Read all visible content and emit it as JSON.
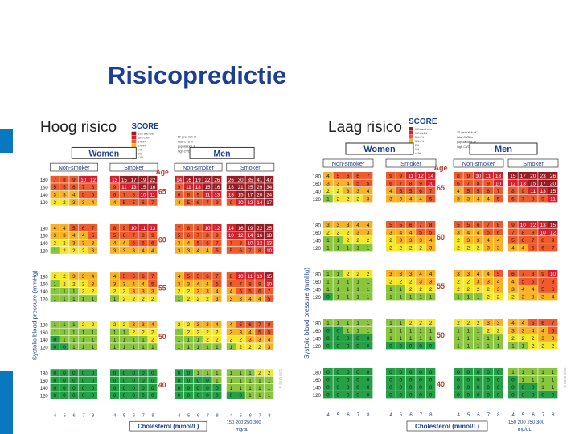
{
  "title": "Risicopredictie",
  "left": {
    "label": "Hoog risico",
    "ages": [
      "65",
      "60",
      "55",
      "50",
      "40"
    ],
    "grid": [
      [
        "7 8 9 10 12",
        "13 15 17 19 22",
        "14 16 19 22 26",
        "26 30 35 41 47",
        "5 5 6 7 8",
        "9 11 13 15 16",
        "9 11 13 15 16",
        "18 21 25 29 34",
        "3 3 4 5 6",
        "6 7 8 10 11",
        "6 8 9 11 13",
        "13 15 17 20 24",
        "2 2 3 3 4",
        "4 5 5 6 7",
        "4 5 6 7 9",
        "9 10 12 14 17"
      ],
      [
        "4 4 5 6 7",
        "8 9 10 11 13",
        "7 8 9 10 12",
        "14 16 19 22 25",
        "3 3 4 4 5",
        "5 6 7 8 9",
        "5 6 7 8 9",
        "10 12 14 16 18",
        "2 2 3 3 3",
        "4 4 5 5 6",
        "3 4 5 6 7",
        "7 8 10 12 13",
        "1 2 2 2 3",
        "3 3 3 4 4",
        "3 3 4 4 5",
        "5 6 7 8 10"
      ],
      [
        "2 2 3 3 4",
        "4 5 5 6 7",
        "4 5 5 6 7",
        "8 10 11 13 15",
        "1 2 2 2 3",
        "3 3 4 4 5",
        "3 3 4 4 5",
        "6 7 8 9 10",
        "1 1 1 2 2",
        "2 2 3 3 3",
        "2 2 3 3 4",
        "4 5 5 6 7",
        "1 1 1 1 1",
        "1 2 2 2 2",
        "1 2 2 2 3",
        "3 3 4 4 5"
      ],
      [
        "1 1 1 2 2",
        "2 2 3 3 4",
        "2 2 3 3 4",
        "4 5 6 7 8",
        "1 1 1 1 1",
        "1 1 2 2 2",
        "1 2 2 2 2",
        "3 3 4 5 5",
        "0 1 1 1 1",
        "1 1 1 1 2",
        "1 1 1 2 2",
        "2 2 3 3 4",
        "0 0 1 1 1",
        "1 1 1 1 1",
        "1 1 1 1 1",
        "1 2 2 2 3"
      ],
      [
        "0 0 0 0 0",
        "0 0 0 0 0",
        "0 0 1 1 1",
        "1 1 1 2 2",
        "0 0 0 0 0",
        "0 0 0 0 0",
        "0 0 0 0 1",
        "1 1 1 1 1",
        "0 0 0 0 0",
        "0 0 0 0 0",
        "0 0 0 0 0",
        "1 1 1 1 1",
        "0 0 0 0 0",
        "0 0 0 0 0",
        "0 0 0 0 0",
        "0 0 1 1 1"
      ]
    ]
  },
  "right": {
    "label": "Laag risico",
    "ages": [
      "65",
      "60",
      "55",
      "50",
      "40"
    ],
    "grid": [
      [
        "4 5 6 6 7",
        "9 9 11 12 14",
        "8 9 10 11 13",
        "15 17 20 23 26",
        "3 3 4 5 5",
        "6 7 8 9 10",
        "6 7 8 9 10",
        "12 13 15 17 20",
        "2 2 3 3 4",
        "4 5 5 6 7",
        "4 5 5 6 7",
        "8 9 11 13 15",
        "1 2 2 2 3",
        "3 3 4 4 5",
        "3 3 4 4 5",
        "6 7 8 9 11"
      ],
      [
        "3 3 3 4 4",
        "5 5 6 7 8",
        "5 5 6 7 8",
        "9 10 12 13 15",
        "2 2 2 3 3",
        "3 4 4 5 5",
        "3 4 4 5 6",
        "7 8 9 10 12",
        "1 1 2 2 2",
        "2 3 3 3 4",
        "2 3 3 4 4",
        "5 6 7 8 9",
        "1 1 1 1 1",
        "2 2 2 2 3",
        "2 2 2 3 3",
        "4 4 5 6 7"
      ],
      [
        "1 1 2 2 2",
        "3 3 3 4 4",
        "3 3 4 4 5",
        "6 7 8 9 10",
        "1 1 1 1 1",
        "2 2 2 3 3",
        "2 2 3 3 4",
        "4 5 6 7 8",
        "1 1 1 1 1",
        "1 1 2 2 2",
        "2 2 2 2 3",
        "3 4 4 5 6",
        "0 1 1 1 1",
        "1 1 1 1 1",
        "1 1 1 2 2",
        "2 3 3 3 4"
      ],
      [
        "1 1 1 1 1",
        "1 1 2 2 2",
        "2 2 2 3 3",
        "4 4 5 6 7",
        "0 0 1 1 1",
        "1 1 1 1 1",
        "1 1 1 2 2",
        "3 3 4 4 5",
        "0 0 0 0 0",
        "1 1 1 1 1",
        "1 1 1 1 1",
        "2 2 2 3 3",
        "0 0 0 0 0",
        "0 0 0 0 0",
        "1 1 1 1 1",
        "1 1 2 2 2"
      ],
      [
        "0 0 0 0 0",
        "0 0 0 0 0",
        "0 0 0 0 0",
        "1 1 1 1 1",
        "0 0 0 0 0",
        "0 0 0 0 0",
        "0 0 0 0 0",
        "0 1 1 1 1",
        "0 0 0 0 0",
        "0 0 0 0 0",
        "0 0 0 0 0",
        "0 0 0 1 1",
        "0 0 0 0 0",
        "0 0 0 0 0",
        "0 0 0 0 0",
        "0 0 0 0 0"
      ]
    ]
  },
  "chart": {
    "women": "Women",
    "men": "Men",
    "non_smoker": "Non-smoker",
    "smoker": "Smoker",
    "age": "Age",
    "score_logo": "SCORE",
    "y_axis": "Systolic blood pressure (mmHg)",
    "x_axis": "Cholesterol (mmol/L)",
    "sbp_ticks": [
      "180",
      "160",
      "140",
      "120"
    ],
    "chol_ticks": [
      "4",
      "5",
      "6",
      "7",
      "8"
    ],
    "mgdl_ticks": "150 200 250 300",
    "mgdl_unit": "mg/dL",
    "legend_items": [
      "15% and over",
      "10%-14%",
      "5%-9%",
      "3%-4%",
      "2%",
      "1%",
      "<1%"
    ],
    "legend_note": [
      "10-year risk of",
      "fatal CVD in",
      "populations at",
      "high CVD risk"
    ],
    "copyright": "© 2012 ESC"
  },
  "colors": {
    "title": "#1c3f94",
    "blue_bar": "#0a78be",
    "risk_0": "#25a047",
    "risk_1": "#8ac53e",
    "risk_2": "#f2e72d",
    "risk_3_4": "#f7b324",
    "risk_5_9": "#ee5b2c",
    "risk_10_14": "#d6212c",
    "risk_15": "#9a1b22"
  }
}
